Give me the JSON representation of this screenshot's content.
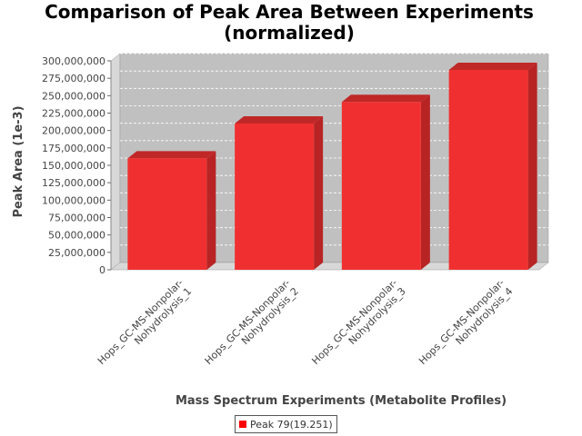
{
  "chart_data": {
    "type": "bar",
    "title_lines": [
      "Comparison of Peak Area Between Experiments",
      "(normalized)"
    ],
    "xlabel": "Mass Spectrum Experiments (Metabolite Profiles)",
    "ylabel": "Peak Area (1e-3)",
    "categories": [
      [
        "Hops_GC-MS-Nonpolar-",
        "Nohydrolysis_1"
      ],
      [
        "Hops_GC-MS-Nonpolar-",
        "Nohydrolysis_2"
      ],
      [
        "Hops_GC-MS-Nonpolar-",
        "Nohydrolysis_3"
      ],
      [
        "Hops_GC-MS-Nonpolar-",
        "Nohydrolysis_4"
      ]
    ],
    "series": [
      {
        "name": "Peak 79(19.251)",
        "values": [
          160000000,
          210000000,
          241000000,
          287000000
        ]
      }
    ],
    "ylim": [
      0,
      300000000
    ],
    "yticks": [
      0,
      25000000,
      50000000,
      75000000,
      100000000,
      125000000,
      150000000,
      175000000,
      200000000,
      225000000,
      250000000,
      275000000,
      300000000
    ],
    "ytick_labels": [
      "0",
      "25,000,000",
      "50,000,000",
      "75,000,000",
      "100,000,000",
      "125,000,000",
      "150,000,000",
      "175,000,000",
      "200,000,000",
      "225,000,000",
      "250,000,000",
      "275,000,000",
      "300,000,000"
    ],
    "grid": true,
    "legend_position": "bottom",
    "colors": {
      "bar": "#f03030",
      "bar_top": "#c02828",
      "bar_side": "#b82424",
      "plot_bg": "#c0c0c0",
      "plot_wall": "#d8d8d8"
    }
  }
}
